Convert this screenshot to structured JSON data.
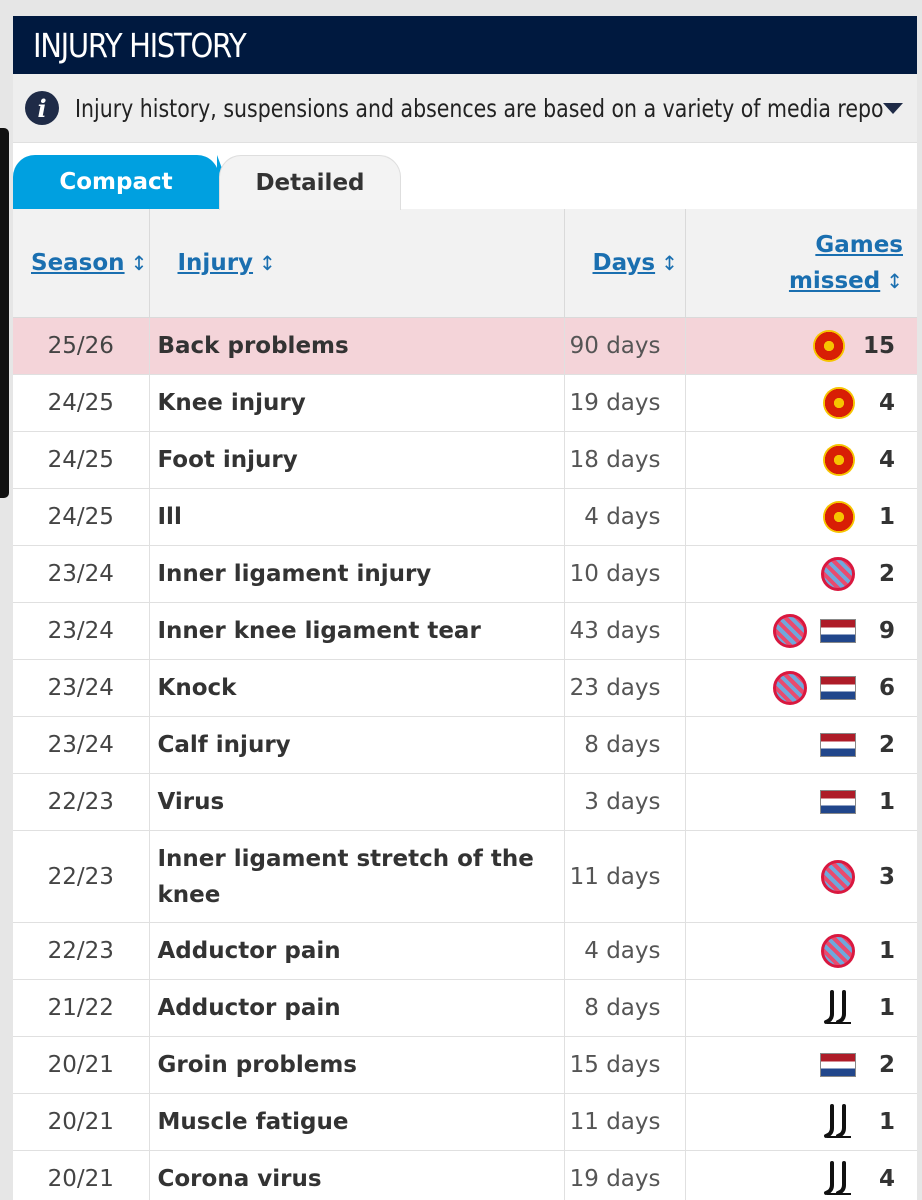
{
  "header": {
    "title": "INJURY HISTORY"
  },
  "info": {
    "icon": "info-icon",
    "text": "Injury history, suspensions and absences are based on a variety of media repo...",
    "expand_icon": "caret-down-icon"
  },
  "tabs": [
    {
      "label": "Compact",
      "active": true
    },
    {
      "label": "Detailed",
      "active": false
    }
  ],
  "columns": {
    "season": "Season",
    "injury": "Injury",
    "days": "Days",
    "games_line1": "Games",
    "games_line2": "missed",
    "sort_glyph": "↕"
  },
  "colors": {
    "header_bg": "#00193f",
    "accent": "#00a0e0",
    "highlight_row": "#f4d4d9",
    "link": "#1a6fb0"
  },
  "rows": [
    {
      "season": "25/26",
      "injury": "Back problems",
      "days": "90 days",
      "icons": [
        "man-utd-crest-icon"
      ],
      "games": "15",
      "highlight": true
    },
    {
      "season": "24/25",
      "injury": "Knee injury",
      "days": "19 days",
      "icons": [
        "man-utd-crest-icon"
      ],
      "games": "4"
    },
    {
      "season": "24/25",
      "injury": "Foot injury",
      "days": "18 days",
      "icons": [
        "man-utd-crest-icon"
      ],
      "games": "4"
    },
    {
      "season": "24/25",
      "injury": "Ill",
      "days": "4 days",
      "icons": [
        "man-utd-crest-icon"
      ],
      "games": "1"
    },
    {
      "season": "23/24",
      "injury": "Inner ligament injury",
      "days": "10 days",
      "icons": [
        "bayern-crest-icon"
      ],
      "games": "2"
    },
    {
      "season": "23/24",
      "injury": "Inner knee ligament tear",
      "days": "43 days",
      "icons": [
        "bayern-crest-icon",
        "netherlands-flag-icon"
      ],
      "games": "9"
    },
    {
      "season": "23/24",
      "injury": "Knock",
      "days": "23 days",
      "icons": [
        "bayern-crest-icon",
        "netherlands-flag-icon"
      ],
      "games": "6"
    },
    {
      "season": "23/24",
      "injury": "Calf injury",
      "days": "8 days",
      "icons": [
        "netherlands-flag-icon"
      ],
      "games": "2"
    },
    {
      "season": "22/23",
      "injury": "Virus",
      "days": "3 days",
      "icons": [
        "netherlands-flag-icon"
      ],
      "games": "1"
    },
    {
      "season": "22/23",
      "injury": "Inner ligament stretch of the knee",
      "days": "11 days",
      "icons": [
        "bayern-crest-icon"
      ],
      "games": "3",
      "tall": true
    },
    {
      "season": "22/23",
      "injury": "Adductor pain",
      "days": "4 days",
      "icons": [
        "bayern-crest-icon"
      ],
      "games": "1"
    },
    {
      "season": "21/22",
      "injury": "Adductor pain",
      "days": "8 days",
      "icons": [
        "juventus-crest-icon"
      ],
      "games": "1"
    },
    {
      "season": "20/21",
      "injury": "Groin problems",
      "days": "15 days",
      "icons": [
        "netherlands-flag-icon"
      ],
      "games": "2"
    },
    {
      "season": "20/21",
      "injury": "Muscle fatigue",
      "days": "11 days",
      "icons": [
        "juventus-crest-icon"
      ],
      "games": "1"
    },
    {
      "season": "20/21",
      "injury": "Corona virus",
      "days": "19 days",
      "icons": [
        "juventus-crest-icon"
      ],
      "games": "4"
    }
  ]
}
